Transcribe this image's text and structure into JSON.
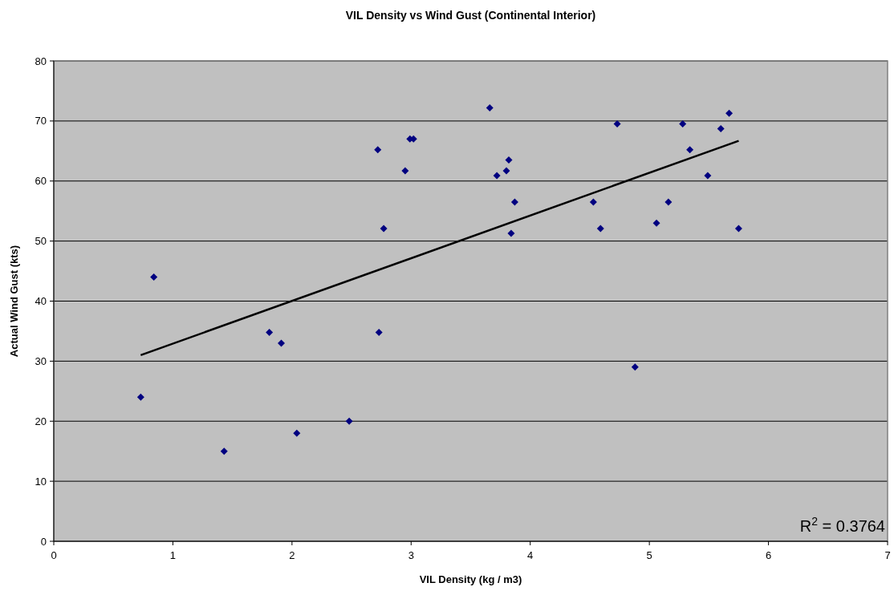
{
  "chart_data": {
    "type": "scatter",
    "title": "VIL Density vs Wind Gust (Continental Interior)",
    "xlabel": "VIL Density (kg / m3)",
    "ylabel": "Actual Wind Gust (kts)",
    "xlim": [
      0,
      7
    ],
    "xticks": [
      0,
      1,
      2,
      3,
      4,
      5,
      6,
      7
    ],
    "ylim": [
      0,
      80
    ],
    "yticks": [
      0,
      10,
      20,
      30,
      40,
      50,
      60,
      70,
      80
    ],
    "grid": "y",
    "marker": "diamond",
    "annotations": [
      "R$^{2}$ = 0.3764"
    ],
    "series": [
      {
        "color": "#000080",
        "x": [
          0.73,
          0.84,
          1.43,
          1.81,
          1.91,
          2.04,
          2.48,
          2.72,
          2.73,
          2.77,
          2.95,
          2.99,
          3.02,
          3.66,
          3.72,
          3.8,
          3.82,
          3.84,
          3.87,
          4.53,
          4.59,
          4.73,
          4.88,
          5.06,
          5.16,
          5.28,
          5.34,
          5.49,
          5.6,
          5.67,
          5.75
        ],
        "values": [
          24,
          44,
          15,
          34.8,
          33,
          18,
          20,
          65.2,
          34.8,
          52.1,
          61.7,
          67,
          67,
          72.2,
          60.9,
          61.7,
          63.5,
          51.3,
          56.5,
          56.5,
          52.1,
          69.5,
          29,
          53,
          56.5,
          69.5,
          65.2,
          60.9,
          68.7,
          71.3,
          52.1
        ]
      },
      {
        "type": "line",
        "color": "#000000",
        "line_style": "solid",
        "marker": "none",
        "x": [
          0.73,
          5.75
        ],
        "values": [
          31,
          66.7
        ]
      }
    ]
  }
}
